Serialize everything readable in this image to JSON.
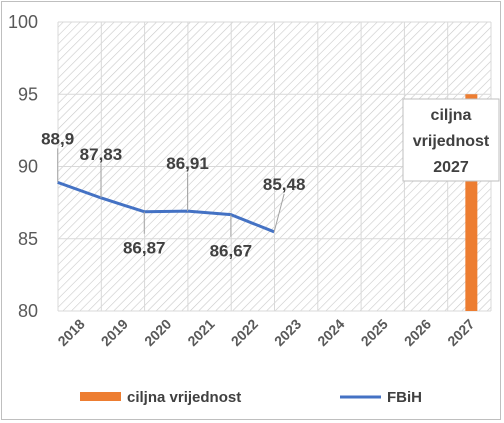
{
  "chart_data": {
    "type": "line",
    "categories": [
      "2018",
      "2019",
      "2020",
      "2021",
      "2022",
      "2023",
      "2024",
      "2025",
      "2026",
      "2027"
    ],
    "series": [
      {
        "name": "FBiH",
        "kind": "line",
        "color": "#4472c4",
        "values": [
          88.9,
          87.83,
          86.87,
          86.91,
          86.67,
          85.48,
          null,
          null,
          null,
          null
        ],
        "labels": [
          "88,9",
          "87,83",
          "86,87",
          "86,91",
          "86,67",
          "85,48",
          "",
          "",
          "",
          ""
        ]
      },
      {
        "name": "ciljna vrijednost",
        "kind": "bar",
        "color": "#ed7d31",
        "values": [
          null,
          null,
          null,
          null,
          null,
          null,
          null,
          null,
          null,
          95
        ]
      }
    ],
    "callout": {
      "lines": [
        "ciljna",
        "vrijednost",
        "2027"
      ]
    },
    "ylim": [
      80,
      100
    ],
    "yticks": [
      "80",
      "85",
      "90",
      "95",
      "100"
    ],
    "grid": true,
    "legend_position": "bottom"
  }
}
